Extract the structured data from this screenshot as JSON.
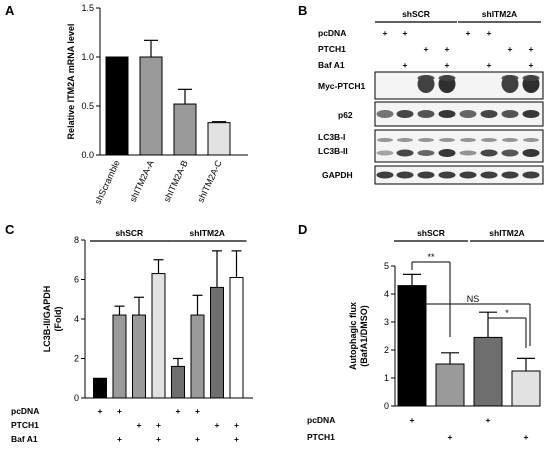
{
  "panels": {
    "A": "A",
    "B": "B",
    "C": "C",
    "D": "D"
  },
  "chart_data": [
    {
      "panel": "A",
      "type": "bar",
      "ylabel": "Relative ITM2A mRNA level",
      "ylim": [
        0,
        1.5
      ],
      "yticks": [
        "0.0",
        "0.5",
        "1.0",
        "1.5"
      ],
      "categories": [
        "shScramble",
        "shITM2A-A",
        "shITM2A-B",
        "shITM2A-C"
      ],
      "values": [
        1.0,
        1.0,
        0.52,
        0.33
      ],
      "errors": [
        0,
        0.17,
        0.15,
        0.01
      ],
      "colors": [
        "#000000",
        "#9a9a9a",
        "#9a9a9a",
        "#e2e2e2"
      ]
    },
    {
      "panel": "C",
      "type": "bar",
      "ylabel": "LC3B-II/GAPDH (Fold)",
      "ylim": [
        0,
        8
      ],
      "yticks": [
        "0",
        "2",
        "4",
        "6",
        "8"
      ],
      "group_labels": [
        "shSCR",
        "shITM2A"
      ],
      "values": [
        1.0,
        4.2,
        4.2,
        6.3,
        1.6,
        4.2,
        5.6,
        6.1
      ],
      "errors": [
        0,
        0.45,
        0.9,
        0.7,
        0.4,
        1.0,
        1.85,
        1.35
      ],
      "colors": [
        "#000000",
        "#9a9a9a",
        "#9a9a9a",
        "#e2e2e2",
        "#6e6e6e",
        "#9a9a9a",
        "#6e6e6e",
        "#ffffff"
      ],
      "conditions": [
        {
          "label": "pcDNA",
          "marks": [
            "+",
            "+",
            "",
            "",
            "+",
            "+",
            "",
            ""
          ]
        },
        {
          "label": "PTCH1",
          "marks": [
            "",
            "",
            "+",
            "+",
            "",
            "",
            "+",
            "+"
          ]
        },
        {
          "label": "Baf A1",
          "marks": [
            "",
            "+",
            "",
            "+",
            "",
            "+",
            "",
            "+"
          ]
        }
      ]
    },
    {
      "panel": "D",
      "type": "bar",
      "ylabel": "Autophagic flux (BafA1/DMSO)",
      "ylim": [
        0,
        5
      ],
      "yticks": [
        "0",
        "1",
        "2",
        "3",
        "4",
        "5"
      ],
      "group_labels": [
        "shSCR",
        "shITM2A"
      ],
      "values": [
        4.3,
        1.5,
        2.45,
        1.25
      ],
      "errors": [
        0.4,
        0.4,
        0.9,
        0.45
      ],
      "colors": [
        "#000000",
        "#9a9a9a",
        "#6e6e6e",
        "#e2e2e2"
      ],
      "significance": [
        "**",
        "NS",
        "*"
      ],
      "conditions": [
        {
          "label": "pcDNA",
          "marks": [
            "+",
            "",
            "+",
            ""
          ]
        },
        {
          "label": "PTCH1",
          "marks": [
            "",
            "+",
            "",
            "+"
          ]
        }
      ]
    }
  ],
  "blot": {
    "group_labels": [
      "shSCR",
      "shITM2A"
    ],
    "conditions": [
      {
        "label": "pcDNA",
        "marks": [
          "+",
          "+",
          "",
          "",
          "+",
          "+",
          "",
          ""
        ]
      },
      {
        "label": "PTCH1",
        "marks": [
          "",
          "",
          "+",
          "+",
          "",
          "",
          "+",
          "+"
        ]
      },
      {
        "label": "Baf A1",
        "marks": [
          "",
          "+",
          "",
          "+",
          "",
          "+",
          "",
          "+"
        ]
      }
    ],
    "rows": [
      {
        "label": "Myc-PTCH1"
      },
      {
        "label": "p62"
      },
      {
        "label": "LC3B-I",
        "label2": "LC3B-II"
      },
      {
        "label": "GAPDH"
      }
    ]
  }
}
